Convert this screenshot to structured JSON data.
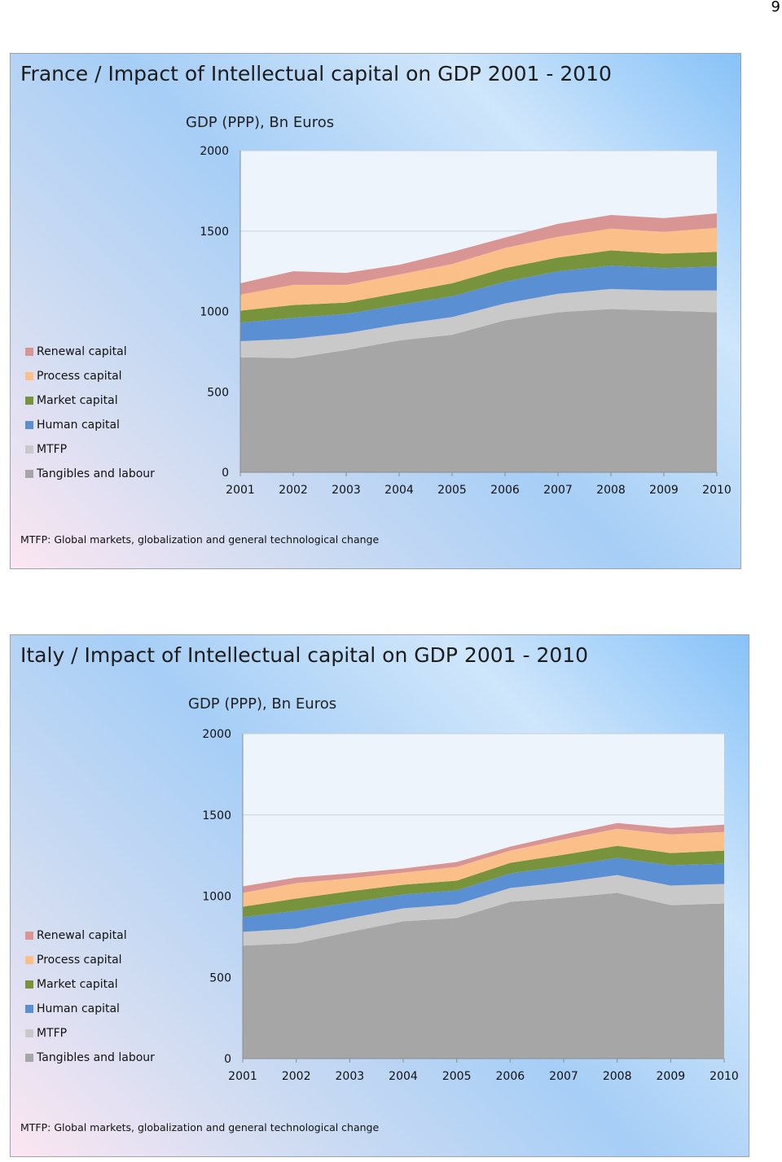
{
  "page_number": "9",
  "slides": [
    {
      "id": "france",
      "title": "France / Impact of Intellectual capital on GDP 2001  -  2010",
      "footnote": "MTFP: Global markets, globalization and general technological change",
      "chart_data": {
        "type": "area",
        "stacked": true,
        "title": "GDP (PPP), Bn Euros",
        "xlabel": "",
        "ylabel": "",
        "ylim": [
          0,
          2000
        ],
        "yticks": [
          0,
          500,
          1000,
          1500,
          2000
        ],
        "categories": [
          "2001",
          "2002",
          "2003",
          "2004",
          "2005",
          "2006",
          "2007",
          "2008",
          "2009",
          "2010"
        ],
        "legend_position": "left",
        "series": [
          {
            "name": "Tangibles and labour",
            "color": "#a6a6a6",
            "values": [
              715,
              710,
              760,
              820,
              855,
              945,
              995,
              1015,
              1005,
              995
            ]
          },
          {
            "name": "MTFP",
            "color": "#c9c9c9",
            "values": [
              100,
              120,
              105,
              100,
              110,
              105,
              115,
              125,
              125,
              135
            ]
          },
          {
            "name": "Human capital",
            "color": "#5b8fd4",
            "values": [
              115,
              130,
              120,
              120,
              130,
              135,
              140,
              145,
              140,
              150
            ]
          },
          {
            "name": "Market capital",
            "color": "#77933c",
            "values": [
              75,
              80,
              70,
              75,
              80,
              85,
              85,
              95,
              90,
              90
            ]
          },
          {
            "name": "Process capital",
            "color": "#fbbf8a",
            "values": [
              100,
              125,
              110,
              115,
              120,
              125,
              130,
              135,
              135,
              150
            ]
          },
          {
            "name": "Renewal capital",
            "color": "#d99594",
            "values": [
              70,
              85,
              75,
              60,
              75,
              65,
              80,
              85,
              85,
              90
            ]
          }
        ]
      }
    },
    {
      "id": "italy",
      "title": "Italy / Impact of Intellectual capital on GDP 2001  -  2010",
      "footnote": "MTFP: Global markets, globalization and general technological change",
      "chart_data": {
        "type": "area",
        "stacked": true,
        "title": "GDP (PPP), Bn Euros",
        "xlabel": "",
        "ylabel": "",
        "ylim": [
          0,
          2000
        ],
        "yticks": [
          0,
          500,
          1000,
          1500,
          2000
        ],
        "categories": [
          "2001",
          "2002",
          "2003",
          "2004",
          "2005",
          "2006",
          "2007",
          "2008",
          "2009",
          "2010"
        ],
        "legend_position": "left",
        "series": [
          {
            "name": "Tangibles and labour",
            "color": "#a6a6a6",
            "values": [
              695,
              710,
              780,
              845,
              865,
              965,
              990,
              1020,
              945,
              955
            ]
          },
          {
            "name": "MTFP",
            "color": "#c9c9c9",
            "values": [
              85,
              90,
              85,
              80,
              85,
              85,
              95,
              110,
              120,
              120
            ]
          },
          {
            "name": "Human capital",
            "color": "#5b8fd4",
            "values": [
              90,
              110,
              95,
              85,
              85,
              90,
              100,
              105,
              125,
              125
            ]
          },
          {
            "name": "Market capital",
            "color": "#77933c",
            "values": [
              65,
              75,
              70,
              60,
              60,
              65,
              70,
              75,
              75,
              80
            ]
          },
          {
            "name": "Process capital",
            "color": "#fbbf8a",
            "values": [
              85,
              95,
              80,
              75,
              85,
              75,
              95,
              105,
              115,
              115
            ]
          },
          {
            "name": "Renewal capital",
            "color": "#d99594",
            "values": [
              40,
              35,
              30,
              25,
              30,
              25,
              30,
              35,
              40,
              45
            ]
          }
        ]
      }
    }
  ]
}
